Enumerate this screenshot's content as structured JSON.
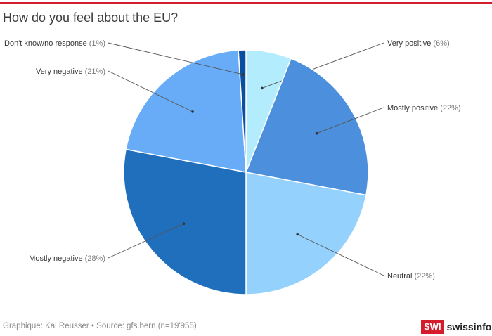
{
  "title": "How do you feel about the EU?",
  "footer": "Graphique: Kai Reusser • Source: gfs.bern (n=19'955)",
  "brand": {
    "box": "SWI",
    "text": "swissinfo.ch",
    "color": "#d41c2c"
  },
  "chart_data": {
    "type": "pie",
    "title": "How do you feel about the EU?",
    "slices": [
      {
        "label": "Very positive",
        "value": 6,
        "display": "(6%)",
        "color": "#b3ecfd"
      },
      {
        "label": "Mostly positive",
        "value": 22,
        "display": "(22%)",
        "color": "#4c8fdc"
      },
      {
        "label": "Neutral",
        "value": 22,
        "display": "(22%)",
        "color": "#94d1fc"
      },
      {
        "label": "Mostly negative",
        "value": 28,
        "display": "(28%)",
        "color": "#1f6fbd"
      },
      {
        "label": "Very negative",
        "value": 21,
        "display": "(21%)",
        "color": "#68acf8"
      },
      {
        "label": "Don't know/no response",
        "value": 1,
        "display": "(1%)",
        "color": "#0b4fa0"
      }
    ]
  }
}
